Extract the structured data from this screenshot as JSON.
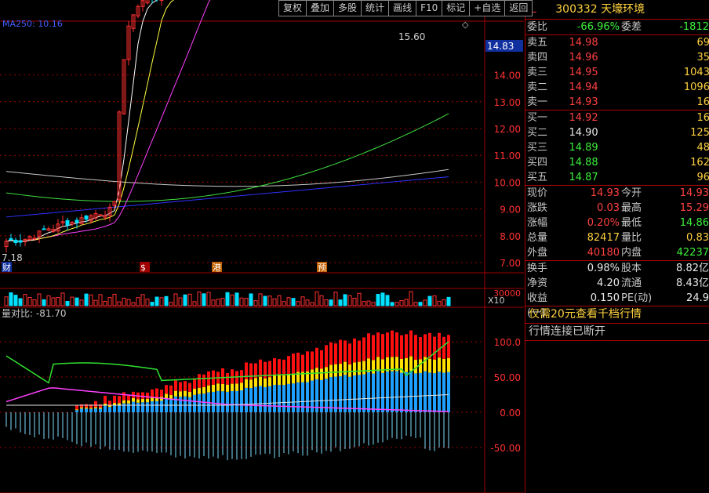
{
  "toolbar": [
    "复权",
    "叠加",
    "多股",
    "统计",
    "画线",
    "F10",
    "标记",
    "+自选",
    "返回"
  ],
  "chart": {
    "ma_label": "MA250: 10.16",
    "price_ticks": [
      "14.00",
      "13.00",
      "12.00",
      "11.00",
      "10.00",
      "9.00",
      "8.00",
      "7.00"
    ],
    "price_tag": "14.83",
    "high_label": "15.60",
    "low_label": "7.18",
    "event_markers": [
      "财",
      "$",
      "港",
      "预"
    ],
    "volume_tick": "30000",
    "volume_unit": "X10",
    "ind_label": "量对比: -81.70",
    "ind_ticks": [
      "100.0",
      "50.00",
      "0.00",
      "-50.00"
    ]
  },
  "colors": {
    "up": "#ff3030",
    "down": "#00e0ff",
    "ma5": "#ffffff",
    "ma10": "#ffff40",
    "ma20": "#ff40ff",
    "ma60": "#40e040",
    "ma120": "#c8c8c8",
    "ma250": "#3030ff",
    "grid": "#a00000"
  },
  "quote": {
    "market": "L",
    "code": "300332",
    "name": "天壕环境",
    "wei": [
      {
        "label": "委比",
        "value": "-66.96%"
      },
      {
        "label": "委差",
        "value": "-1812"
      }
    ],
    "asks": [
      {
        "label": "卖五",
        "price": "14.98",
        "vol": "69"
      },
      {
        "label": "卖四",
        "price": "14.96",
        "vol": "35"
      },
      {
        "label": "卖三",
        "price": "14.95",
        "vol": "1043"
      },
      {
        "label": "卖二",
        "price": "14.94",
        "vol": "1096"
      },
      {
        "label": "卖一",
        "price": "14.93",
        "vol": "16"
      }
    ],
    "bids": [
      {
        "label": "买一",
        "price": "14.92",
        "vol": "16"
      },
      {
        "label": "买二",
        "price": "14.90",
        "vol": "125"
      },
      {
        "label": "买三",
        "price": "14.89",
        "vol": "48"
      },
      {
        "label": "买四",
        "price": "14.88",
        "vol": "162"
      },
      {
        "label": "买五",
        "price": "14.87",
        "vol": "96"
      }
    ],
    "stats1": [
      [
        "现价",
        "14.93",
        "今开",
        "14.93"
      ],
      [
        "涨跌",
        "0.03",
        "最高",
        "15.29"
      ],
      [
        "涨幅",
        "0.20%",
        "最低",
        "14.86"
      ],
      [
        "总量",
        "82417",
        "量比",
        "0.83"
      ],
      [
        "外盘",
        "40180",
        "内盘",
        "42237"
      ]
    ],
    "stats2": [
      [
        "换手",
        "0.98%",
        "股本",
        "8.82亿"
      ],
      [
        "净资",
        "4.20",
        "流通",
        "8.43亿"
      ],
      [
        "收益(一)",
        "0.150",
        "PE(动)",
        "24.9"
      ]
    ],
    "msg1": "仅需20元查看千档行情",
    "msg2": "行情连接已断开"
  }
}
